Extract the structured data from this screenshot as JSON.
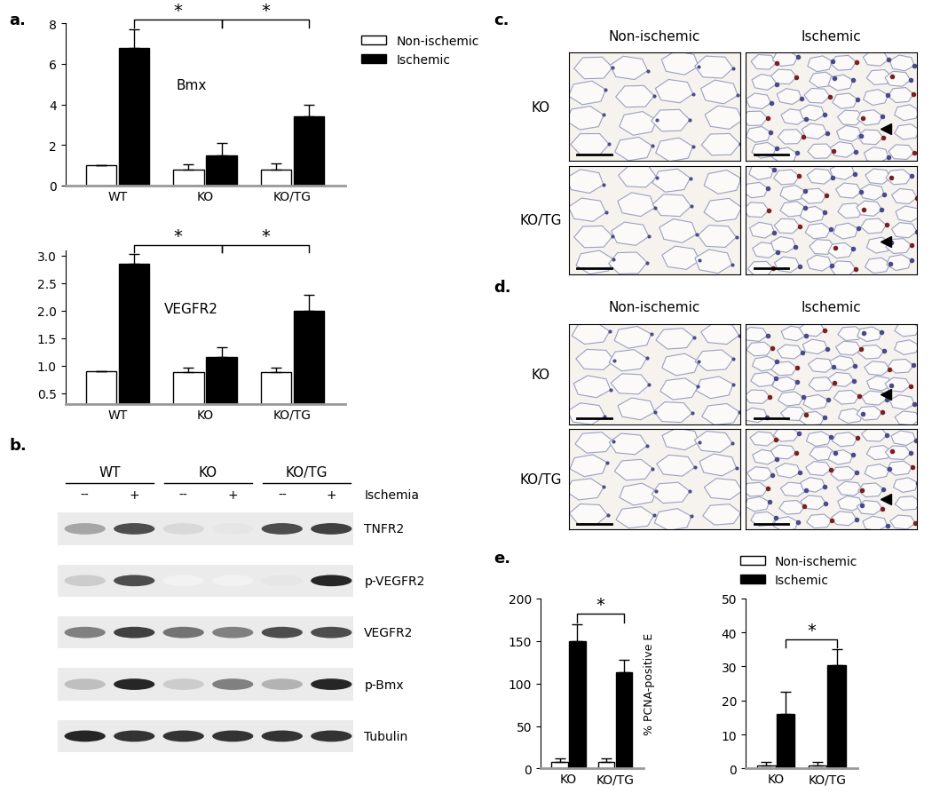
{
  "chart_data": [
    {
      "type": "bar",
      "annotation": "Bmx",
      "categories": [
        "WT",
        "KO",
        "KO/TG"
      ],
      "ylim": [
        0,
        8
      ],
      "yticks": [
        0,
        2,
        4,
        6,
        8
      ],
      "legend": "upper left",
      "series": [
        {
          "name": "Non-ischemic",
          "color": "#ffffff",
          "values": [
            1.0,
            0.8,
            0.8
          ],
          "errors": [
            0,
            0.25,
            0.3
          ]
        },
        {
          "name": "Ischemic",
          "color": "#000000",
          "values": [
            6.8,
            1.5,
            3.4
          ],
          "errors": [
            0.9,
            0.6,
            0.6
          ]
        }
      ],
      "significance": [
        {
          "between": [
            "WT",
            "KO"
          ],
          "label": "*"
        },
        {
          "between": [
            "KO",
            "KO/TG"
          ],
          "label": "*"
        }
      ]
    },
    {
      "type": "bar",
      "annotation": "VEGFR2",
      "categories": [
        "WT",
        "KO",
        "KO/TG"
      ],
      "ylim": [
        0.3,
        3.1
      ],
      "yticks": [
        0.5,
        1.0,
        1.5,
        2.0,
        2.5,
        3.0
      ],
      "series": [
        {
          "name": "Non-ischemic",
          "color": "#ffffff",
          "values": [
            0.9,
            0.88,
            0.88
          ],
          "errors": [
            0,
            0.08,
            0.08
          ]
        },
        {
          "name": "Ischemic",
          "color": "#000000",
          "values": [
            2.85,
            1.15,
            2.0
          ],
          "errors": [
            0.18,
            0.18,
            0.28
          ]
        }
      ],
      "significance": [
        {
          "between": [
            "WT",
            "KO"
          ],
          "label": "*"
        },
        {
          "between": [
            "KO",
            "KO/TG"
          ],
          "label": "*"
        }
      ]
    },
    {
      "type": "bar",
      "ylabel": "% PCNA-positive E",
      "categories": [
        "KO",
        "KO/TG"
      ],
      "ylim": [
        0,
        200
      ],
      "yticks": [
        0,
        50,
        100,
        150,
        200
      ],
      "series": [
        {
          "name": "Non-ischemic",
          "color": "#ffffff",
          "values": [
            8,
            8
          ],
          "errors": [
            4,
            4
          ]
        },
        {
          "name": "Ischemic",
          "color": "#000000",
          "values": [
            150,
            113
          ],
          "errors": [
            20,
            15
          ]
        }
      ],
      "significance": [
        {
          "between": [
            "KO",
            "KO/TG"
          ],
          "label": "*"
        }
      ]
    },
    {
      "type": "bar",
      "categories": [
        "KO",
        "KO/TG"
      ],
      "ylim": [
        0,
        50
      ],
      "yticks": [
        0,
        10,
        20,
        30,
        40,
        50
      ],
      "legend": "upper right",
      "series": [
        {
          "name": "Non-ischemic",
          "color": "#ffffff",
          "values": [
            1,
            1
          ],
          "errors": [
            1,
            1
          ]
        },
        {
          "name": "Ischemic",
          "color": "#000000",
          "values": [
            16,
            30.5
          ],
          "errors": [
            6.5,
            4.5
          ]
        }
      ],
      "significance": [
        {
          "between": [
            "KO",
            "KO/TG"
          ],
          "label": "*"
        }
      ]
    }
  ],
  "panel_labels": [
    "a.",
    "b.",
    "c.",
    "d.",
    "e."
  ],
  "blot": {
    "groups": [
      "WT",
      "KO",
      "KO/TG"
    ],
    "lanes": [
      "--",
      "+",
      "--",
      "+",
      "--",
      "+"
    ],
    "lanes_label": "Ischemia",
    "rows": [
      {
        "label": "TNFR2",
        "bands": [
          0.35,
          0.7,
          0.15,
          0.1,
          0.7,
          0.75
        ]
      },
      {
        "label": "p-VEGFR2",
        "bands": [
          0.2,
          0.7,
          0.05,
          0.05,
          0.1,
          0.85
        ]
      },
      {
        "label": "VEGFR2",
        "bands": [
          0.5,
          0.75,
          0.55,
          0.5,
          0.7,
          0.7
        ]
      },
      {
        "label": "p-Bmx",
        "bands": [
          0.25,
          0.85,
          0.2,
          0.5,
          0.3,
          0.85
        ]
      },
      {
        "label": "Tubulin",
        "bands": [
          0.85,
          0.8,
          0.8,
          0.8,
          0.8,
          0.8
        ]
      }
    ]
  },
  "histology": [
    {
      "columns": [
        "Non-ischemic",
        "Ischemic"
      ],
      "rows": [
        "KO",
        "KO/TG"
      ]
    },
    {
      "columns": [
        "Non-ischemic",
        "Ischemic"
      ],
      "rows": [
        "KO",
        "KO/TG"
      ]
    }
  ]
}
